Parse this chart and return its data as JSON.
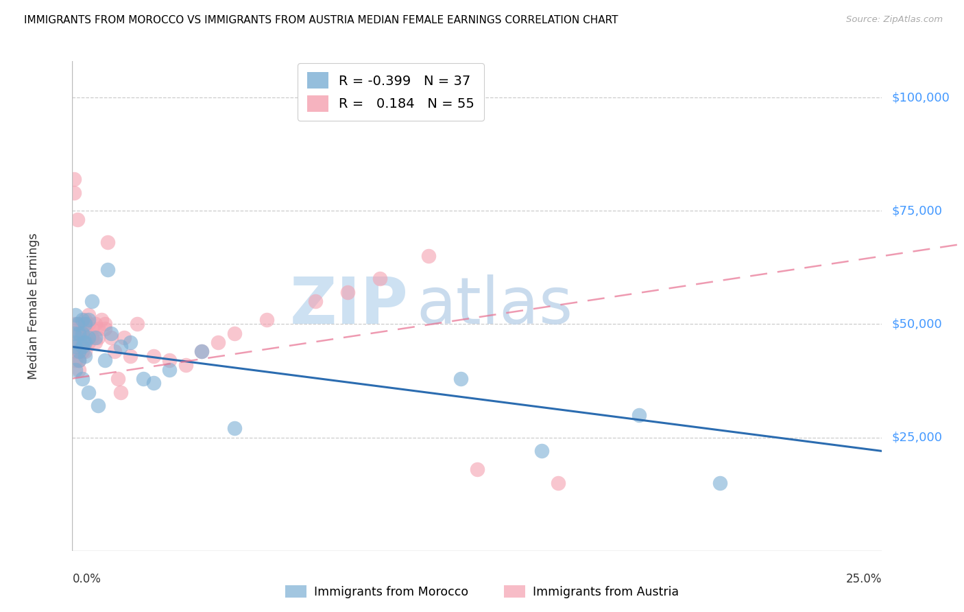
{
  "title": "IMMIGRANTS FROM MOROCCO VS IMMIGRANTS FROM AUSTRIA MEDIAN FEMALE EARNINGS CORRELATION CHART",
  "source": "Source: ZipAtlas.com",
  "ylabel": "Median Female Earnings",
  "ytick_labels": [
    "$25,000",
    "$50,000",
    "$75,000",
    "$100,000"
  ],
  "ytick_values": [
    25000,
    50000,
    75000,
    100000
  ],
  "ylim": [
    0,
    108000
  ],
  "xlim": [
    0.0,
    0.25
  ],
  "xlim_display_min": "0.0%",
  "xlim_display_max": "25.0%",
  "morocco_R": -0.399,
  "morocco_N": 37,
  "austria_R": 0.184,
  "austria_N": 55,
  "morocco_color": "#7BAED4",
  "austria_color": "#F4A0B0",
  "morocco_line_color": "#2B6CB0",
  "austria_line_color": "#E87090",
  "legend_label_morocco": "Immigrants from Morocco",
  "legend_label_austria": "Immigrants from Austria",
  "morocco_x": [
    0.0005,
    0.0007,
    0.001,
    0.001,
    0.001,
    0.0015,
    0.002,
    0.002,
    0.002,
    0.003,
    0.003,
    0.003,
    0.003,
    0.0035,
    0.004,
    0.004,
    0.004,
    0.005,
    0.005,
    0.005,
    0.006,
    0.007,
    0.008,
    0.01,
    0.011,
    0.012,
    0.015,
    0.018,
    0.022,
    0.025,
    0.03,
    0.04,
    0.05,
    0.12,
    0.145,
    0.175,
    0.2
  ],
  "morocco_y": [
    48000,
    46000,
    52000,
    45000,
    40000,
    50000,
    48000,
    44000,
    42000,
    51000,
    48000,
    45000,
    38000,
    46000,
    50000,
    46000,
    43000,
    51000,
    47000,
    35000,
    55000,
    47000,
    32000,
    42000,
    62000,
    48000,
    45000,
    46000,
    38000,
    37000,
    40000,
    44000,
    27000,
    38000,
    22000,
    30000,
    15000
  ],
  "austria_x": [
    0.0005,
    0.0005,
    0.001,
    0.001,
    0.001,
    0.001,
    0.0015,
    0.002,
    0.002,
    0.002,
    0.002,
    0.002,
    0.002,
    0.003,
    0.003,
    0.003,
    0.003,
    0.003,
    0.004,
    0.004,
    0.004,
    0.004,
    0.005,
    0.005,
    0.005,
    0.006,
    0.006,
    0.007,
    0.007,
    0.008,
    0.008,
    0.009,
    0.01,
    0.01,
    0.011,
    0.012,
    0.013,
    0.014,
    0.015,
    0.016,
    0.018,
    0.02,
    0.025,
    0.03,
    0.035,
    0.04,
    0.045,
    0.05,
    0.06,
    0.075,
    0.085,
    0.095,
    0.11,
    0.125,
    0.15
  ],
  "austria_y": [
    82000,
    79000,
    50000,
    47000,
    44000,
    42000,
    73000,
    50000,
    48000,
    46000,
    44000,
    42000,
    40000,
    50000,
    48000,
    47000,
    46000,
    44000,
    51000,
    49000,
    47000,
    44000,
    52000,
    50000,
    46000,
    49000,
    47000,
    50000,
    46000,
    49000,
    47000,
    51000,
    50000,
    49000,
    68000,
    47000,
    44000,
    38000,
    35000,
    47000,
    43000,
    50000,
    43000,
    42000,
    41000,
    44000,
    46000,
    48000,
    51000,
    55000,
    57000,
    60000,
    65000,
    18000,
    15000
  ]
}
